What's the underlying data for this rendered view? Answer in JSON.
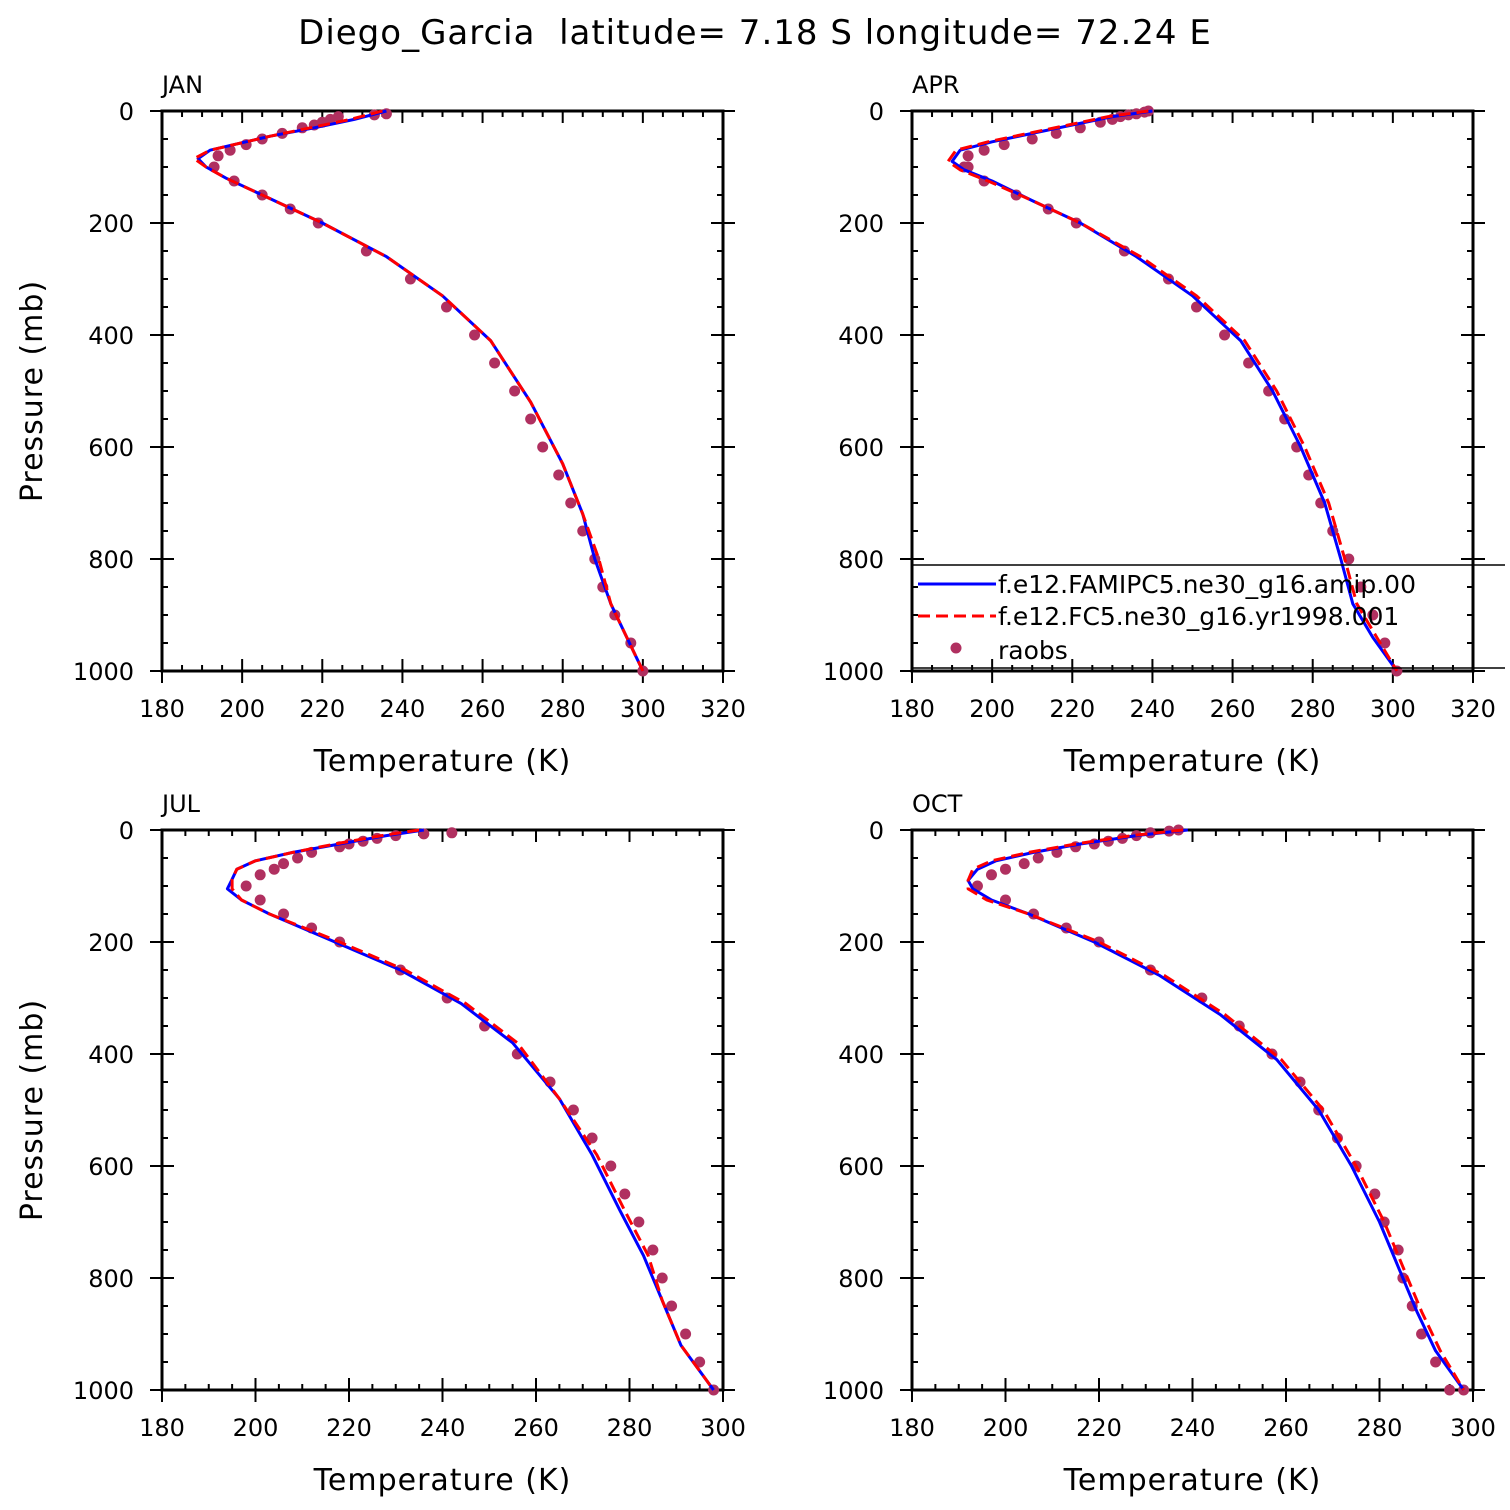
{
  "figure": {
    "title": "Diego_Garcia  latitude= 7.18 S longitude= 72.24 E"
  },
  "legend": {
    "panel_index": 1,
    "entries": [
      {
        "label": "f.e12.FAMIPC5.ne30_g16.amip.00",
        "color": "#0000ff",
        "style": "solid"
      },
      {
        "label": "f.e12.FC5.ne30_g16.yr1998.001",
        "color": "#ff0000",
        "style": "dashed"
      },
      {
        "label": "raobs",
        "color": "#b03060",
        "style": "marker"
      }
    ]
  },
  "chart_data": [
    {
      "type": "line",
      "title": "JAN",
      "xlabel": "Temperature (K)",
      "ylabel": "Pressure (mb)",
      "xlim": [
        180,
        320
      ],
      "ylim": [
        1000,
        0
      ],
      "xticks": [
        180,
        200,
        220,
        240,
        260,
        280,
        300,
        320
      ],
      "yticks": [
        0,
        200,
        400,
        600,
        800,
        1000
      ],
      "series": [
        {
          "name": "f.e12.FAMIPC5.ne30_g16.amip.00",
          "color": "#0000ff",
          "dash": false,
          "x": [
            236,
            228,
            218,
            207,
            198,
            192,
            189,
            191,
            196,
            205,
            220,
            236,
            250,
            262,
            272,
            280,
            285,
            288,
            292,
            296,
            300
          ],
          "y": [
            0,
            15,
            30,
            45,
            60,
            70,
            85,
            100,
            120,
            150,
            200,
            260,
            330,
            410,
            520,
            630,
            720,
            800,
            880,
            940,
            1000
          ]
        },
        {
          "name": "f.e12.FC5.ne30_g16.yr1998.001",
          "color": "#ff0000",
          "dash": true,
          "x": [
            235,
            227,
            217,
            207,
            198,
            192,
            188,
            191,
            196,
            205,
            220,
            236,
            250,
            262,
            272,
            280,
            285,
            289,
            292,
            296,
            300
          ],
          "y": [
            0,
            15,
            30,
            45,
            60,
            70,
            85,
            100,
            120,
            150,
            200,
            260,
            330,
            410,
            520,
            630,
            720,
            800,
            880,
            940,
            1000
          ]
        },
        {
          "name": "raobs",
          "color": "#b03060",
          "marker": true,
          "x": [
            236,
            233,
            224,
            222,
            220,
            218,
            215,
            210,
            205,
            201,
            197,
            194,
            193,
            198,
            205,
            212,
            219,
            231,
            242,
            251,
            258,
            263,
            268,
            272,
            275,
            279,
            282,
            285,
            288,
            290,
            293,
            297,
            300
          ],
          "y": [
            5,
            7,
            10,
            15,
            20,
            25,
            30,
            40,
            50,
            60,
            70,
            80,
            100,
            125,
            150,
            175,
            200,
            250,
            300,
            350,
            400,
            450,
            500,
            550,
            600,
            650,
            700,
            750,
            800,
            850,
            900,
            950,
            1000
          ]
        }
      ]
    },
    {
      "type": "line",
      "title": "APR",
      "xlabel": "Temperature (K)",
      "ylabel": "",
      "xlim": [
        180,
        320
      ],
      "ylim": [
        1000,
        0
      ],
      "xticks": [
        180,
        200,
        220,
        240,
        260,
        280,
        300,
        320
      ],
      "yticks": [
        0,
        200,
        400,
        600,
        800,
        1000
      ],
      "series": [
        {
          "name": "f.e12.FAMIPC5.ne30_g16.amip.00",
          "color": "#0000ff",
          "dash": false,
          "x": [
            240,
            230,
            220,
            210,
            200,
            192,
            190,
            193,
            200,
            210,
            222,
            236,
            250,
            262,
            270,
            277,
            283,
            287,
            290,
            295,
            301
          ],
          "y": [
            0,
            10,
            25,
            40,
            55,
            70,
            90,
            105,
            125,
            160,
            200,
            260,
            330,
            410,
            500,
            600,
            700,
            800,
            880,
            940,
            1000
          ]
        },
        {
          "name": "f.e12.FC5.ne30_g16.yr1998.001",
          "color": "#ff0000",
          "dash": true,
          "x": [
            239,
            229,
            219,
            209,
            199,
            191,
            189,
            192,
            199,
            210,
            222,
            237,
            251,
            263,
            271,
            278,
            284,
            288,
            291,
            296,
            301
          ],
          "y": [
            0,
            10,
            25,
            40,
            55,
            70,
            90,
            105,
            125,
            160,
            200,
            260,
            330,
            410,
            500,
            600,
            700,
            800,
            880,
            940,
            1000
          ]
        },
        {
          "name": "raobs",
          "color": "#b03060",
          "marker": true,
          "x": [
            239,
            238,
            236,
            234,
            232,
            230,
            227,
            222,
            216,
            210,
            203,
            198,
            194,
            194,
            193,
            198,
            206,
            214,
            221,
            233,
            244,
            251,
            258,
            264,
            269,
            273,
            276,
            279,
            282,
            285,
            289,
            292,
            295,
            298,
            301
          ],
          "y": [
            0,
            2,
            5,
            7,
            10,
            15,
            20,
            30,
            40,
            50,
            60,
            70,
            80,
            100,
            100,
            125,
            150,
            175,
            200,
            250,
            300,
            350,
            400,
            450,
            500,
            550,
            600,
            650,
            700,
            750,
            800,
            850,
            900,
            950,
            1000
          ]
        }
      ]
    },
    {
      "type": "line",
      "title": "JUL",
      "xlabel": "Temperature (K)",
      "ylabel": "Pressure (mb)",
      "xlim": [
        180,
        300
      ],
      "ylim": [
        1000,
        0
      ],
      "xticks": [
        180,
        200,
        220,
        240,
        260,
        280,
        300
      ],
      "yticks": [
        0,
        200,
        400,
        600,
        800,
        1000
      ],
      "series": [
        {
          "name": "f.e12.FAMIPC5.ne30_g16.amip.00",
          "color": "#0000ff",
          "dash": false,
          "x": [
            236,
            228,
            218,
            208,
            200,
            196,
            195,
            194,
            197,
            203,
            217,
            231,
            244,
            255,
            265,
            272,
            278,
            283,
            287,
            291,
            298
          ],
          "y": [
            0,
            10,
            25,
            40,
            55,
            70,
            88,
            105,
            125,
            150,
            200,
            250,
            310,
            380,
            480,
            580,
            680,
            760,
            840,
            920,
            1000
          ]
        },
        {
          "name": "f.e12.FC5.ne30_g16.yr1998.001",
          "color": "#ff0000",
          "dash": true,
          "x": [
            235,
            227,
            217,
            208,
            200,
            196,
            195,
            195,
            197,
            203,
            218,
            232,
            245,
            256,
            265,
            273,
            279,
            284,
            287,
            291,
            298
          ],
          "y": [
            0,
            10,
            25,
            40,
            55,
            70,
            88,
            105,
            125,
            150,
            200,
            250,
            310,
            380,
            480,
            580,
            680,
            760,
            840,
            920,
            1000
          ]
        },
        {
          "name": "raobs",
          "color": "#b03060",
          "marker": true,
          "x": [
            242,
            236,
            230,
            226,
            223,
            220,
            218,
            212,
            209,
            206,
            204,
            201,
            198,
            201,
            206,
            212,
            218,
            231,
            241,
            249,
            256,
            263,
            268,
            272,
            276,
            279,
            282,
            285,
            287,
            289,
            292,
            295,
            298
          ],
          "y": [
            5,
            7,
            10,
            15,
            20,
            25,
            30,
            40,
            50,
            60,
            70,
            80,
            100,
            125,
            150,
            175,
            200,
            250,
            300,
            350,
            400,
            450,
            500,
            550,
            600,
            650,
            700,
            750,
            800,
            850,
            900,
            950,
            1000
          ]
        }
      ]
    },
    {
      "type": "line",
      "title": "OCT",
      "xlabel": "Temperature (K)",
      "ylabel": "",
      "xlim": [
        180,
        300
      ],
      "ylim": [
        1000,
        0
      ],
      "xticks": [
        180,
        200,
        220,
        240,
        260,
        280,
        300
      ],
      "yticks": [
        0,
        200,
        400,
        600,
        800,
        1000
      ],
      "series": [
        {
          "name": "f.e12.FAMIPC5.ne30_g16.amip.00",
          "color": "#0000ff",
          "dash": false,
          "x": [
            239,
            228,
            216,
            206,
            198,
            194,
            192,
            193,
            197,
            205,
            219,
            233,
            246,
            258,
            267,
            274,
            280,
            284,
            288,
            292,
            298
          ],
          "y": [
            0,
            10,
            25,
            40,
            55,
            70,
            90,
            105,
            125,
            150,
            200,
            260,
            330,
            410,
            500,
            600,
            700,
            780,
            860,
            930,
            1000
          ]
        },
        {
          "name": "f.e12.FC5.ne30_g16.yr1998.001",
          "color": "#ff0000",
          "dash": true,
          "x": [
            238,
            227,
            215,
            205,
            197,
            193,
            192,
            192,
            196,
            205,
            220,
            234,
            247,
            259,
            268,
            275,
            281,
            285,
            289,
            293,
            298
          ],
          "y": [
            0,
            10,
            25,
            40,
            55,
            70,
            90,
            105,
            125,
            150,
            200,
            260,
            330,
            410,
            500,
            600,
            700,
            780,
            860,
            930,
            1000
          ]
        },
        {
          "name": "raobs",
          "color": "#b03060",
          "marker": true,
          "x": [
            237,
            235,
            231,
            228,
            225,
            222,
            219,
            215,
            211,
            207,
            204,
            200,
            197,
            194,
            200,
            206,
            213,
            220,
            231,
            242,
            250,
            257,
            263,
            267,
            271,
            275,
            279,
            281,
            284,
            285,
            287,
            289,
            292,
            295,
            298
          ],
          "y": [
            0,
            2,
            5,
            10,
            15,
            20,
            25,
            30,
            40,
            50,
            60,
            70,
            80,
            100,
            125,
            150,
            175,
            200,
            250,
            300,
            350,
            400,
            450,
            500,
            550,
            600,
            650,
            700,
            750,
            800,
            850,
            900,
            950,
            1000,
            1000
          ]
        }
      ]
    }
  ]
}
